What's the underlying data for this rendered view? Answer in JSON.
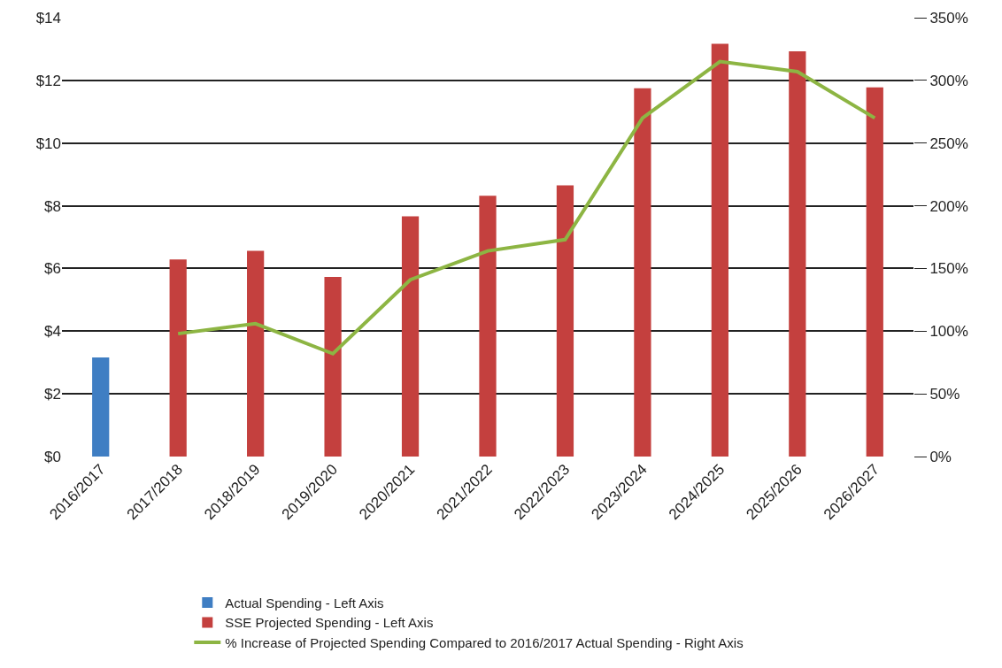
{
  "chart_data": {
    "type": "bar",
    "categories": [
      "2016/2017",
      "2017/2018",
      "2018/2019",
      "2019/2020",
      "2020/2021",
      "2021/2022",
      "2022/2023",
      "2023/2024",
      "2024/2025",
      "2025/2026",
      "2026/2027"
    ],
    "series": [
      {
        "name": "Actual Spending - Left Axis",
        "color": "#3f7ec3",
        "values": [
          3.16,
          null,
          null,
          null,
          null,
          null,
          null,
          null,
          null,
          null,
          null
        ]
      },
      {
        "name": "SSE Projected Spending - Left Axis",
        "color": "#c4403e",
        "values": [
          null,
          6.29,
          6.56,
          5.73,
          7.66,
          8.32,
          8.65,
          11.75,
          13.17,
          12.93,
          11.78
        ]
      },
      {
        "name": "% Increase of Projected Spending Compared to 2016/2017 Actual Spending - Right Axis",
        "type": "line",
        "axis": "y2",
        "color": "#8db543",
        "line_style": "solid",
        "values": [
          null,
          98,
          106,
          82,
          141,
          164,
          173,
          270,
          315,
          307,
          270
        ]
      }
    ],
    "ylim": [
      0,
      14
    ],
    "yticks": [
      {
        "value": 0,
        "label": "$0"
      },
      {
        "value": 2,
        "label": "$2"
      },
      {
        "value": 4,
        "label": "$4"
      },
      {
        "value": 6,
        "label": "$6"
      },
      {
        "value": 8,
        "label": "$8"
      },
      {
        "value": 10,
        "label": "$10"
      },
      {
        "value": 12,
        "label": "$12"
      },
      {
        "value": 14,
        "label": "$14"
      }
    ],
    "y2lim": [
      0,
      350
    ],
    "y2ticks": [
      {
        "value": 0,
        "label": "0%"
      },
      {
        "value": 50,
        "label": "50%"
      },
      {
        "value": 100,
        "label": "100%"
      },
      {
        "value": 150,
        "label": "150%"
      },
      {
        "value": 200,
        "label": "200%"
      },
      {
        "value": 250,
        "label": "250%"
      },
      {
        "value": 300,
        "label": "300%"
      },
      {
        "value": 350,
        "label": "350%"
      }
    ],
    "grid": "y",
    "legend": "bottom",
    "marker": "none"
  }
}
